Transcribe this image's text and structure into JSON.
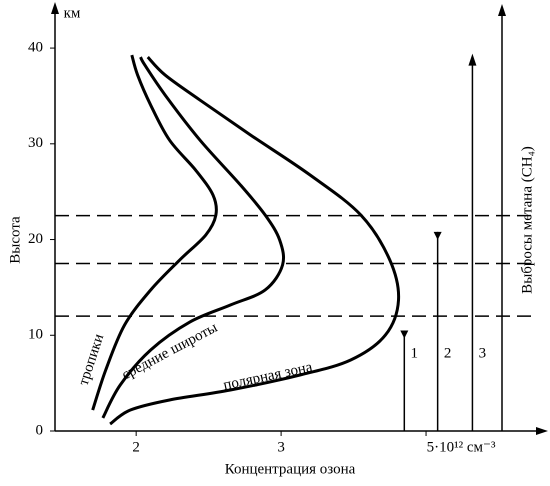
{
  "chart_data": {
    "type": "line",
    "xlabel": "Концентрация озона",
    "ylabel": "Высота",
    "y_unit": "км",
    "y2label": "Выбросы метана (CH₄)",
    "xlim": [
      1.44,
      4.8
    ],
    "ylim": [
      0,
      44.5
    ],
    "xticks": [
      2,
      3,
      {
        "value": 4,
        "label": "5·10¹² см⁻³"
      }
    ],
    "yticks": [
      0,
      10,
      20,
      30,
      40
    ],
    "series": [
      {
        "name": "тропики",
        "color": "#000000",
        "x": [
          1.7,
          1.79,
          1.92,
          2.1,
          2.3,
          2.48,
          2.55,
          2.53,
          2.41,
          2.23,
          2.1,
          2.01,
          1.97
        ],
        "values": [
          2.19,
          6.37,
          11.07,
          14.73,
          17.86,
          20.47,
          22.56,
          24.65,
          27.26,
          30.39,
          34.05,
          37.18,
          39.27
        ]
      },
      {
        "name": "средние широты",
        "color": "#000000",
        "x": [
          1.77,
          1.89,
          2.1,
          2.37,
          2.65,
          2.89,
          3.01,
          2.99,
          2.89,
          2.72,
          2.44,
          2.2,
          2.06,
          2.03
        ],
        "values": [
          1.36,
          4.8,
          8.46,
          11.38,
          13.16,
          14.73,
          17.34,
          19.95,
          22.56,
          25.69,
          30.39,
          35.09,
          38.22,
          39.06
        ]
      },
      {
        "name": "полярная зона",
        "color": "#000000",
        "x": [
          1.82,
          1.96,
          2.23,
          2.65,
          3.13,
          3.48,
          3.72,
          3.81,
          3.75,
          3.55,
          3.2,
          2.79,
          2.44,
          2.2,
          2.08
        ],
        "values": [
          0.73,
          2.19,
          3.24,
          4.28,
          5.85,
          7.42,
          10.03,
          13.68,
          17.86,
          22.56,
          26.74,
          30.91,
          34.57,
          37.18,
          39.06
        ]
      }
    ],
    "reference_lines": {
      "values": [
        22.5,
        17.5,
        12
      ],
      "style": "dashed"
    },
    "methane": {
      "labels": [
        "1",
        "2",
        "3"
      ],
      "x": [
        3.85,
        4.08,
        4.32
      ],
      "values": [
        10.5,
        20.8,
        39
      ],
      "markers": [
        "triangle",
        "triangle",
        "arrow"
      ]
    }
  }
}
